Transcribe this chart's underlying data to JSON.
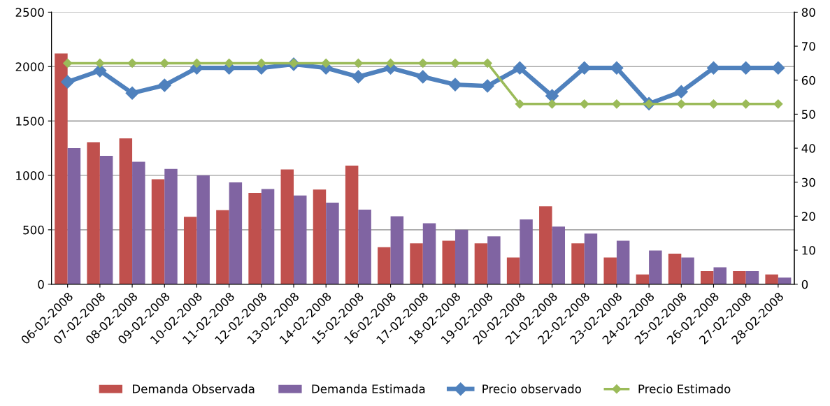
{
  "chart_data": {
    "type": "bar",
    "categories": [
      "06-02-2008",
      "07-02-2008",
      "08-02-2008",
      "09-02-2008",
      "10-02-2008",
      "11-02-2008",
      "12-02-2008",
      "13-02-2008",
      "14-02-2008",
      "15-02-2008",
      "16-02-2008",
      "17-02-2008",
      "18-02-2008",
      "19-02-2008",
      "20-02-2008",
      "21-02-2008",
      "22-02-2008",
      "23-02-2008",
      "24-02-2008",
      "25-02-2008",
      "26-02-2008",
      "27-02-2008",
      "28-02-2008"
    ],
    "series": [
      {
        "name": "Demanda Observada",
        "color": "#c0504d",
        "values": [
          2120,
          1305,
          1340,
          965,
          620,
          680,
          840,
          1055,
          870,
          1090,
          340,
          375,
          400,
          375,
          245,
          715,
          375,
          245,
          90,
          280,
          120,
          120,
          90
        ]
      },
      {
        "name": "Demanda Estimada",
        "color": "#8064a2",
        "values": [
          1250,
          1180,
          1125,
          1060,
          1000,
          935,
          875,
          815,
          750,
          685,
          625,
          560,
          500,
          440,
          595,
          530,
          465,
          400,
          310,
          245,
          155,
          120,
          60
        ]
      },
      {
        "name": "Precio observado",
        "color": "#4f81bd",
        "type": "line",
        "axis": "y2",
        "values": [
          59.5,
          62.8,
          56.2,
          58.5,
          63.6,
          63.6,
          63.6,
          64.7,
          63.6,
          61,
          63.6,
          61,
          58.7,
          58.3,
          63.6,
          55.4,
          63.6,
          63.6,
          53.1,
          56.6,
          63.6,
          63.6,
          63.6
        ]
      },
      {
        "name": "Precio Estimado",
        "color": "#9bbb59",
        "type": "line",
        "axis": "y2",
        "values": [
          65,
          65,
          65,
          65,
          65,
          65,
          65,
          65,
          65,
          65,
          65,
          65,
          65,
          65,
          53,
          53,
          53,
          53,
          53,
          53,
          53,
          53,
          53
        ]
      }
    ],
    "ylim": [
      0,
      2500
    ],
    "yticks": [
      0,
      500,
      1000,
      1500,
      2000,
      2500
    ],
    "y2lim": [
      0,
      80
    ],
    "y2ticks": [
      0,
      10,
      20,
      30,
      40,
      50,
      60,
      70,
      80
    ],
    "grid": "y",
    "legend": "bottom",
    "marker": "diamond",
    "line_style": "solid"
  }
}
